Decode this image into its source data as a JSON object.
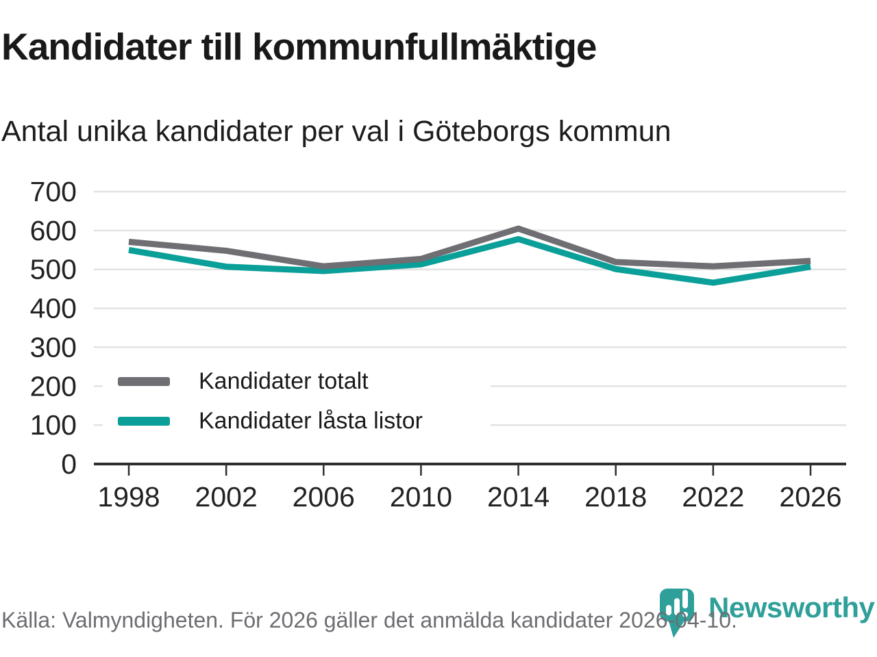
{
  "title": "Kandidater till kommunfullmäktige",
  "subtitle": "Antal unika kandidater per val i Göteborgs kommun",
  "source": "Källa: Valmyndigheten. För 2026 gäller det anmälda kandidater 2026-04-10.",
  "brand": {
    "name": "Newsworthy",
    "color": "#2f9f9a"
  },
  "colors": {
    "total_line": "#6e6e73",
    "locked_line": "#0a9f98",
    "grid": "#e2e2e2",
    "axis": "#2e2e2e",
    "tick_text": "#222222",
    "muted_text": "#6d6d72"
  },
  "legend": [
    {
      "label": "Kandidater totalt",
      "color": "#6e6e73"
    },
    {
      "label": "Kandidater låsta listor",
      "color": "#0a9f98"
    }
  ],
  "chart_data": {
    "type": "line",
    "title": "Kandidater till kommunfullmäktige",
    "subtitle": "Antal unika kandidater per val i Göteborgs kommun",
    "x": [
      1998,
      2002,
      2006,
      2010,
      2014,
      2018,
      2022,
      2026
    ],
    "series": [
      {
        "name": "Kandidater totalt",
        "color": "#6e6e73",
        "values": [
          571,
          548,
          508,
          527,
          605,
          519,
          508,
          522
        ]
      },
      {
        "name": "Kandidater låsta listor",
        "color": "#0a9f98",
        "values": [
          550,
          507,
          496,
          513,
          578,
          501,
          466,
          507
        ]
      }
    ],
    "ylim": [
      0,
      700
    ],
    "yticks": [
      0,
      100,
      200,
      300,
      400,
      500,
      600,
      700
    ],
    "xticks": [
      "1998",
      "2002",
      "2006",
      "2010",
      "2014",
      "2018",
      "2022",
      "2026"
    ],
    "grid": "horizontal",
    "legend_position": "inside-left-bottom"
  }
}
